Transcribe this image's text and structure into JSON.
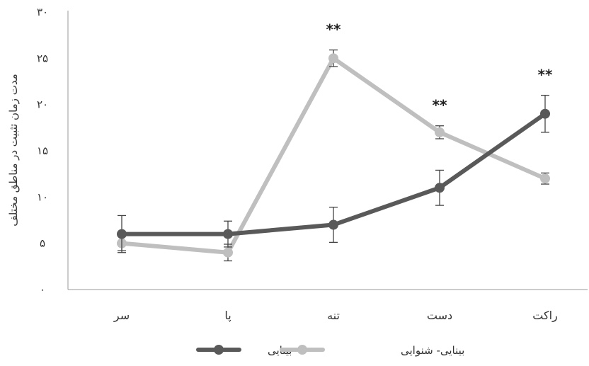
{
  "chart_data": {
    "type": "line",
    "ylabel": "مدت زمان تثبیت در مناطق مختلف",
    "ylim": [
      0,
      30
    ],
    "yticks": [
      0,
      5,
      10,
      15,
      20,
      25,
      30
    ],
    "ytick_labels": [
      "۰",
      "۵",
      "۱۰",
      "۱۵",
      "۲۰",
      "۲۵",
      "۳۰"
    ],
    "categories": [
      "سر",
      "پا",
      "تنه",
      "دست",
      "راکت"
    ],
    "series": [
      {
        "name": "بینایی",
        "color": "#595959",
        "values": [
          6,
          6,
          7,
          11,
          19
        ],
        "error": [
          2,
          1.4,
          1.9,
          1.9,
          2
        ]
      },
      {
        "name": "بینایی- شنوایی",
        "color": "#bfbfbf",
        "values": [
          5,
          4,
          25,
          17,
          12
        ],
        "error": [
          0.8,
          0.9,
          0.9,
          0.7,
          0.6
        ]
      }
    ],
    "annotations": [
      {
        "category_index": 2,
        "text": "**"
      },
      {
        "category_index": 3,
        "text": "**"
      },
      {
        "category_index": 4,
        "text": "**"
      }
    ],
    "grid": false,
    "legend_position": "bottom"
  }
}
